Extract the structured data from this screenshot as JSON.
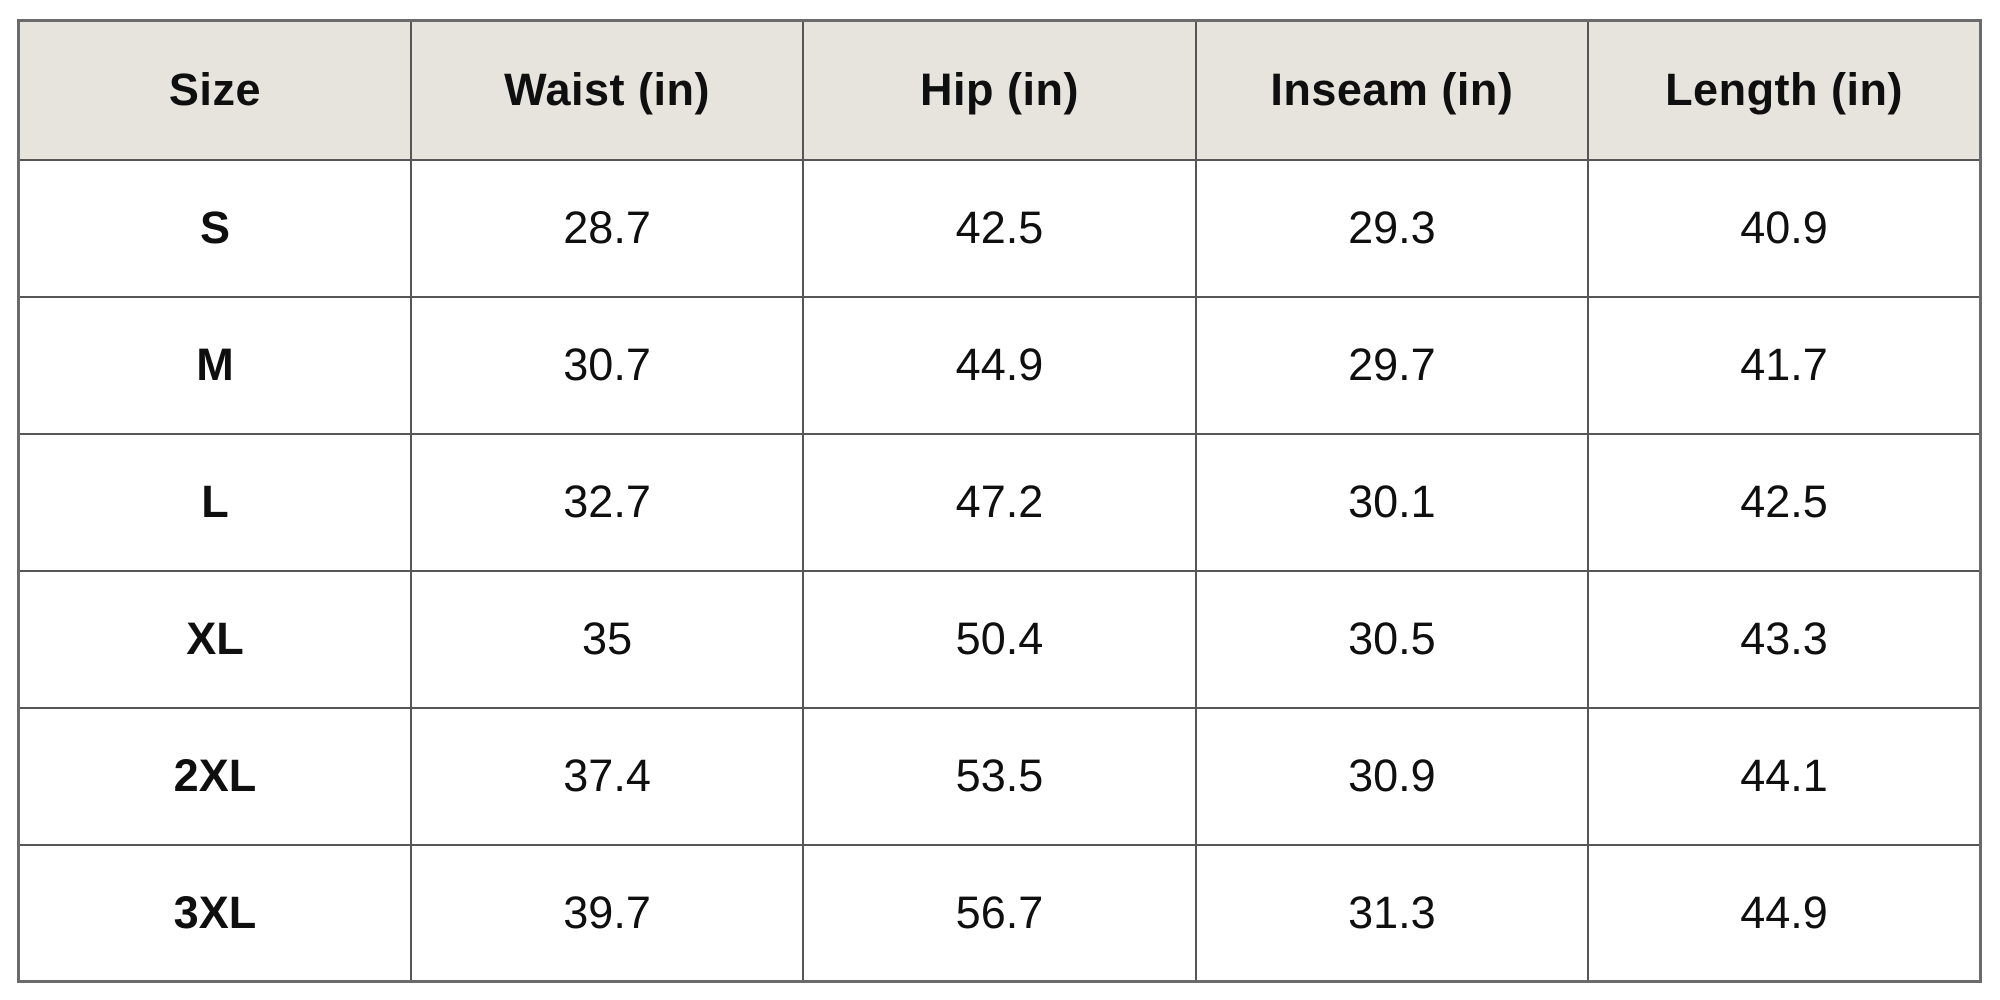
{
  "colors": {
    "page_bg": "#ffffff",
    "header_bg": "#e7e3dd",
    "border_inner": "#565656",
    "border_outer": "#6b6b6b",
    "text": "#0f0f0f"
  },
  "chart_data": {
    "type": "table",
    "columns": [
      "Size",
      "Waist (in)",
      "Hip (in)",
      "Inseam (in)",
      "Length (in)"
    ],
    "rows": [
      [
        "S",
        "28.7",
        "42.5",
        "29.3",
        "40.9"
      ],
      [
        "M",
        "30.7",
        "44.9",
        "29.7",
        "41.7"
      ],
      [
        "L",
        "32.7",
        "47.2",
        "30.1",
        "42.5"
      ],
      [
        "XL",
        "35",
        "50.4",
        "30.5",
        "43.3"
      ],
      [
        "2XL",
        "37.4",
        "53.5",
        "30.9",
        "44.1"
      ],
      [
        "3XL",
        "39.7",
        "56.7",
        "31.3",
        "44.9"
      ]
    ]
  }
}
